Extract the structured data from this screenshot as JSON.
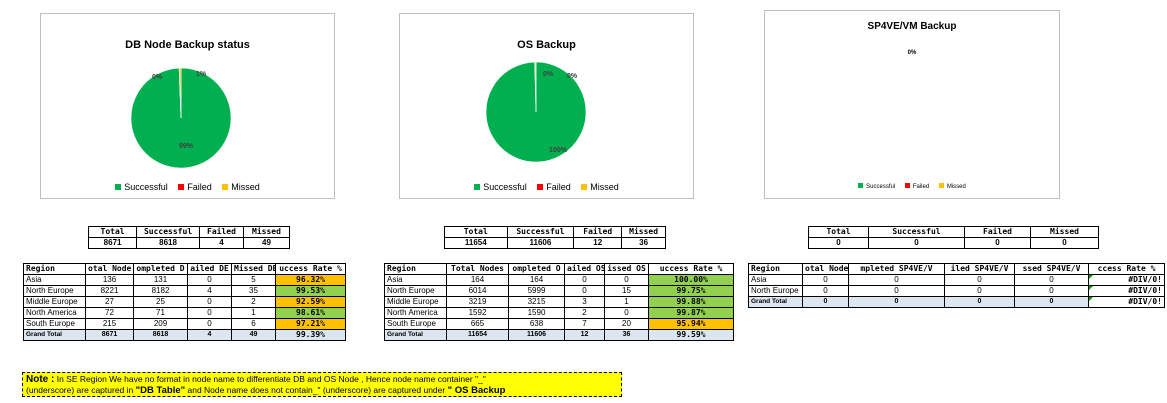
{
  "chart_data": [
    {
      "type": "pie",
      "title": "DB Node Backup status",
      "categories": [
        "Successful",
        "Failed",
        "Missed"
      ],
      "values": [
        8618,
        4,
        49
      ],
      "labels": [
        "99%",
        "0%",
        "1%"
      ],
      "colors": [
        "#00b050",
        "#ff0000",
        "#ffc000"
      ],
      "legend": "bottom"
    },
    {
      "type": "pie",
      "title": "OS Backup",
      "categories": [
        "Successful",
        "Failed",
        "Missed"
      ],
      "values": [
        11606,
        12,
        36
      ],
      "labels": [
        "100%",
        "0%",
        "0%"
      ],
      "colors": [
        "#00b050",
        "#ff0000",
        "#ffc000"
      ],
      "legend": "bottom"
    },
    {
      "type": "pie",
      "title": "SP4VE/VM Backup",
      "categories": [
        "Successful",
        "Failed",
        "Missed"
      ],
      "values": [
        0,
        0,
        0
      ],
      "labels": [
        "0%"
      ],
      "colors": [
        "#00b050",
        "#ff0000",
        "#ffc000"
      ],
      "legend": "bottom"
    }
  ],
  "summaries": [
    {
      "headers": [
        "Total",
        "Successful",
        "Failed",
        "Missed"
      ],
      "values": [
        "8671",
        "8618",
        "4",
        "49"
      ]
    },
    {
      "headers": [
        "Total",
        "Successful",
        "Failed",
        "Missed"
      ],
      "values": [
        "11654",
        "11606",
        "12",
        "36"
      ]
    },
    {
      "headers": [
        "Total",
        "Successful",
        "Failed",
        "Missed"
      ],
      "values": [
        "0",
        "0",
        "0",
        "0"
      ]
    }
  ],
  "tables": [
    {
      "headers": [
        "Region",
        "otal Node",
        "ompleted D",
        "ailed DE",
        "Missed DE",
        "uccess Rate %"
      ],
      "rows": [
        [
          "Asia",
          "136",
          "131",
          "0",
          "5",
          "96.32%"
        ],
        [
          "North Europe",
          "8221",
          "8182",
          "4",
          "35",
          "99.53%"
        ],
        [
          "Middle Europe",
          "27",
          "25",
          "0",
          "2",
          "92.59%"
        ],
        [
          "North America",
          "72",
          "71",
          "0",
          "1",
          "98.61%"
        ],
        [
          "South Europe",
          "215",
          "209",
          "0",
          "6",
          "97.21%"
        ]
      ],
      "rate_colors": [
        "orange",
        "green",
        "orange",
        "green",
        "orange"
      ],
      "grand": [
        "Grand Total",
        "8671",
        "8618",
        "4",
        "49",
        "99.39%"
      ]
    },
    {
      "headers": [
        "Region",
        "Total Nodes",
        "ompleted O",
        "ailed OS",
        "issed OS",
        "uccess Rate %"
      ],
      "rows": [
        [
          "Asia",
          "164",
          "164",
          "0",
          "0",
          "100.00%"
        ],
        [
          "North Europe",
          "6014",
          "5999",
          "0",
          "15",
          "99.75%"
        ],
        [
          "Middle Europe",
          "3219",
          "3215",
          "3",
          "1",
          "99.88%"
        ],
        [
          "North America",
          "1592",
          "1590",
          "2",
          "0",
          "99.87%"
        ],
        [
          "South Europe",
          "665",
          "638",
          "7",
          "20",
          "95.94%"
        ]
      ],
      "rate_colors": [
        "green",
        "green",
        "green",
        "green",
        "orange"
      ],
      "grand": [
        "Grand Total",
        "11654",
        "11606",
        "12",
        "36",
        "99.59%"
      ]
    },
    {
      "headers": [
        "Region",
        "otal Node",
        "mpleted SP4VE/V",
        "iled SP4VE/V",
        "ssed SP4VE/V",
        "ccess Rate %"
      ],
      "rows": [
        [
          "Asia",
          "0",
          "0",
          "0",
          "0",
          "#DIV/0!"
        ],
        [
          "North Europe",
          "0",
          "0",
          "0",
          "0",
          "#DIV/0!"
        ]
      ],
      "rate_colors": [
        "none",
        "none"
      ],
      "grand": [
        "Grand Total",
        "0",
        "0",
        "0",
        "0",
        "#DIV/0!"
      ]
    }
  ],
  "note": {
    "label": "Note :",
    "line1": "In SE Region We have no format in node name to differentiate DB and OS Node , Hence node name container \"_\"",
    "line2a": "(underscore) are captured in",
    "db_table": "\"DB Table\"",
    "line2b": "and Node name does not contain_\" (underscore)  are captured under",
    "os_backup": "\" OS Backup"
  }
}
